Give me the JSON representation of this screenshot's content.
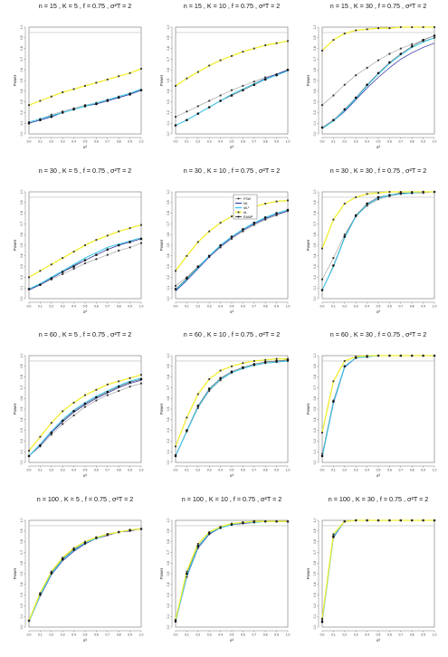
{
  "chart_data": {
    "type": "line",
    "x": [
      0,
      0.1,
      0.2,
      0.3,
      0.4,
      0.5,
      0.6,
      0.7,
      0.8,
      0.9,
      1.0
    ],
    "xticks": [
      "0.0",
      "0.1",
      "0.2",
      "0.3",
      "0.4",
      "0.5",
      "0.6",
      "0.7",
      "0.8",
      "0.9",
      "1.0"
    ],
    "yticks": [
      "0.0",
      "0.1",
      "0.2",
      "0.3",
      "0.4",
      "0.5",
      "0.6",
      "0.7",
      "0.8",
      "0.9",
      "1.0"
    ],
    "xlabel": "σ²",
    "ylabel": "Power",
    "xlim": [
      0,
      1
    ],
    "ylim": [
      0,
      1
    ],
    "reference_line": 0.95,
    "legend": {
      "panel": 4,
      "placement": "top-left",
      "entries": [
        {
          "key": "fsw",
          "label": "FSW"
        },
        {
          "key": "ml",
          "label": "ML"
        },
        {
          "key": "ml2",
          "label": "ML²"
        },
        {
          "key": "al",
          "label": "AL"
        },
        {
          "key": "ramp",
          "label": "RAMP"
        }
      ]
    },
    "colors": {
      "fsw": "#999999",
      "ml": "#2a2aa0",
      "ml2": "#40c8e8",
      "al": "#f0ee30",
      "ramp": "#222222",
      "ref": "#bbbbbb",
      "axis": "#555555"
    },
    "panels": [
      {
        "title": "n = 15 , K = 5 , f = 0.75 , σ²T = 2",
        "series": {
          "fsw": [
            0.11,
            0.14,
            0.18,
            0.21,
            0.24,
            0.27,
            0.29,
            0.32,
            0.35,
            0.38,
            0.41
          ],
          "ml": [
            0.1,
            0.13,
            0.16,
            0.2,
            0.23,
            0.26,
            0.28,
            0.31,
            0.34,
            0.37,
            0.41
          ],
          "ml2": [
            0.11,
            0.14,
            0.17,
            0.2,
            0.23,
            0.26,
            0.29,
            0.32,
            0.35,
            0.38,
            0.42
          ],
          "al": [
            0.27,
            0.31,
            0.35,
            0.39,
            0.42,
            0.45,
            0.48,
            0.51,
            0.54,
            0.57,
            0.61
          ],
          "ramp": [
            0.1,
            0.13,
            0.16,
            0.2,
            0.23,
            0.26,
            0.28,
            0.31,
            0.34,
            0.37,
            0.41
          ]
        }
      },
      {
        "title": "n = 15 , K = 10 , f = 0.75 , σ²T = 2",
        "series": {
          "fsw": [
            0.16,
            0.21,
            0.26,
            0.31,
            0.36,
            0.41,
            0.45,
            0.49,
            0.53,
            0.56,
            0.6
          ],
          "ml": [
            0.08,
            0.13,
            0.19,
            0.25,
            0.31,
            0.37,
            0.42,
            0.47,
            0.52,
            0.56,
            0.6
          ],
          "ml2": [
            0.08,
            0.13,
            0.19,
            0.25,
            0.31,
            0.37,
            0.42,
            0.47,
            0.51,
            0.55,
            0.59
          ],
          "al": [
            0.45,
            0.52,
            0.58,
            0.64,
            0.69,
            0.73,
            0.77,
            0.8,
            0.83,
            0.85,
            0.87
          ],
          "ramp": [
            0.08,
            0.13,
            0.19,
            0.25,
            0.31,
            0.36,
            0.41,
            0.46,
            0.51,
            0.55,
            0.6
          ]
        }
      },
      {
        "title": "n = 15 , K = 30 , f = 0.75 , σ²T = 2",
        "series": {
          "fsw": [
            0.27,
            0.36,
            0.46,
            0.55,
            0.62,
            0.69,
            0.75,
            0.8,
            0.84,
            0.87,
            0.9
          ],
          "ml": [
            0.05,
            0.12,
            0.21,
            0.32,
            0.43,
            0.53,
            0.62,
            0.7,
            0.76,
            0.81,
            0.85
          ],
          "ml2": [
            0.05,
            0.12,
            0.22,
            0.33,
            0.45,
            0.56,
            0.66,
            0.74,
            0.81,
            0.86,
            0.9
          ],
          "al": [
            0.78,
            0.88,
            0.94,
            0.97,
            0.98,
            0.99,
            0.99,
            1.0,
            1.0,
            1.0,
            1.0
          ],
          "ramp": [
            0.06,
            0.13,
            0.23,
            0.34,
            0.46,
            0.57,
            0.67,
            0.75,
            0.82,
            0.88,
            0.92
          ]
        }
      },
      {
        "title": "n = 30 , K = 5 , f = 0.75 , σ²T = 2",
        "series": {
          "fsw": [
            0.09,
            0.13,
            0.18,
            0.23,
            0.28,
            0.33,
            0.37,
            0.41,
            0.45,
            0.48,
            0.52
          ],
          "ml": [
            0.08,
            0.13,
            0.19,
            0.25,
            0.31,
            0.36,
            0.41,
            0.46,
            0.5,
            0.53,
            0.56
          ],
          "ml2": [
            0.09,
            0.14,
            0.2,
            0.26,
            0.32,
            0.38,
            0.43,
            0.48,
            0.51,
            0.54,
            0.57
          ],
          "al": [
            0.2,
            0.26,
            0.32,
            0.38,
            0.44,
            0.5,
            0.55,
            0.59,
            0.63,
            0.66,
            0.69
          ],
          "ramp": [
            0.09,
            0.13,
            0.19,
            0.25,
            0.3,
            0.36,
            0.41,
            0.46,
            0.5,
            0.53,
            0.56
          ]
        }
      },
      {
        "title": "n = 30 , K = 10 , f = 0.75 , σ²T = 2",
        "series": {
          "fsw": [
            0.12,
            0.2,
            0.3,
            0.39,
            0.48,
            0.56,
            0.63,
            0.69,
            0.74,
            0.78,
            0.82
          ],
          "ml": [
            0.07,
            0.17,
            0.28,
            0.39,
            0.49,
            0.57,
            0.64,
            0.7,
            0.75,
            0.79,
            0.82
          ],
          "ml2": [
            0.08,
            0.18,
            0.29,
            0.4,
            0.5,
            0.58,
            0.65,
            0.71,
            0.76,
            0.8,
            0.83
          ],
          "al": [
            0.26,
            0.4,
            0.53,
            0.63,
            0.71,
            0.77,
            0.82,
            0.86,
            0.89,
            0.91,
            0.92
          ],
          "ramp": [
            0.09,
            0.19,
            0.3,
            0.4,
            0.5,
            0.58,
            0.65,
            0.71,
            0.76,
            0.8,
            0.83
          ]
        }
      },
      {
        "title": "n = 30 , K = 30 , f = 0.75 , σ²T = 2",
        "series": {
          "fsw": [
            0.18,
            0.38,
            0.6,
            0.77,
            0.87,
            0.93,
            0.96,
            0.98,
            0.99,
            0.99,
            1.0
          ],
          "ml": [
            0.08,
            0.3,
            0.57,
            0.77,
            0.88,
            0.94,
            0.97,
            0.98,
            0.99,
            1.0,
            1.0
          ],
          "ml2": [
            0.08,
            0.3,
            0.57,
            0.77,
            0.88,
            0.94,
            0.97,
            0.98,
            0.99,
            1.0,
            1.0
          ],
          "al": [
            0.47,
            0.74,
            0.89,
            0.95,
            0.98,
            0.99,
            1.0,
            1.0,
            1.0,
            1.0,
            1.0
          ],
          "ramp": [
            0.08,
            0.31,
            0.58,
            0.78,
            0.89,
            0.95,
            0.97,
            0.99,
            0.99,
            1.0,
            1.0
          ]
        }
      },
      {
        "title": "n = 60 , K = 5 , f = 0.75 , σ²T = 2",
        "series": {
          "fsw": [
            0.06,
            0.15,
            0.26,
            0.36,
            0.44,
            0.52,
            0.58,
            0.63,
            0.67,
            0.71,
            0.74
          ],
          "ml": [
            0.06,
            0.16,
            0.28,
            0.38,
            0.47,
            0.54,
            0.6,
            0.65,
            0.7,
            0.74,
            0.77
          ],
          "ml2": [
            0.06,
            0.17,
            0.29,
            0.4,
            0.49,
            0.56,
            0.62,
            0.67,
            0.72,
            0.76,
            0.79
          ],
          "al": [
            0.11,
            0.24,
            0.37,
            0.48,
            0.56,
            0.63,
            0.68,
            0.73,
            0.76,
            0.79,
            0.82
          ],
          "ramp": [
            0.06,
            0.16,
            0.28,
            0.39,
            0.48,
            0.55,
            0.61,
            0.66,
            0.71,
            0.75,
            0.78
          ]
        }
      },
      {
        "title": "n = 60 , K = 10 , f = 0.75 , σ²T = 2",
        "series": {
          "fsw": [
            0.07,
            0.29,
            0.51,
            0.67,
            0.77,
            0.84,
            0.88,
            0.91,
            0.93,
            0.94,
            0.95
          ],
          "ml": [
            0.06,
            0.29,
            0.52,
            0.68,
            0.78,
            0.84,
            0.88,
            0.91,
            0.93,
            0.94,
            0.95
          ],
          "ml2": [
            0.06,
            0.29,
            0.52,
            0.68,
            0.78,
            0.84,
            0.88,
            0.91,
            0.93,
            0.94,
            0.95
          ],
          "al": [
            0.15,
            0.42,
            0.64,
            0.78,
            0.86,
            0.9,
            0.93,
            0.95,
            0.96,
            0.97,
            0.97
          ],
          "ramp": [
            0.06,
            0.3,
            0.53,
            0.69,
            0.79,
            0.85,
            0.89,
            0.92,
            0.94,
            0.95,
            0.96
          ]
        }
      },
      {
        "title": "n = 60 , K = 30 , f = 0.75 , σ²T = 2",
        "series": {
          "fsw": [
            0.08,
            0.58,
            0.9,
            0.98,
            0.99,
            1.0,
            1.0,
            1.0,
            1.0,
            1.0,
            1.0
          ],
          "ml": [
            0.05,
            0.55,
            0.89,
            0.98,
            0.99,
            1.0,
            1.0,
            1.0,
            1.0,
            1.0,
            1.0
          ],
          "ml2": [
            0.05,
            0.56,
            0.9,
            0.98,
            0.99,
            1.0,
            1.0,
            1.0,
            1.0,
            1.0,
            1.0
          ],
          "al": [
            0.28,
            0.76,
            0.95,
            0.99,
            1.0,
            1.0,
            1.0,
            1.0,
            1.0,
            1.0,
            1.0
          ],
          "ramp": [
            0.06,
            0.57,
            0.9,
            0.98,
            0.99,
            1.0,
            1.0,
            1.0,
            1.0,
            1.0,
            1.0
          ]
        }
      },
      {
        "title": "n = 100 , K = 5 , f = 0.75 , σ²T = 2",
        "series": {
          "fsw": [
            0.06,
            0.3,
            0.5,
            0.63,
            0.72,
            0.78,
            0.83,
            0.86,
            0.89,
            0.9,
            0.92
          ],
          "ml": [
            0.05,
            0.29,
            0.49,
            0.62,
            0.71,
            0.78,
            0.83,
            0.86,
            0.89,
            0.9,
            0.92
          ],
          "ml2": [
            0.05,
            0.3,
            0.5,
            0.63,
            0.72,
            0.79,
            0.83,
            0.87,
            0.89,
            0.91,
            0.92
          ],
          "al": [
            0.06,
            0.32,
            0.52,
            0.65,
            0.74,
            0.8,
            0.84,
            0.87,
            0.89,
            0.91,
            0.92
          ],
          "ramp": [
            0.06,
            0.31,
            0.51,
            0.64,
            0.73,
            0.79,
            0.84,
            0.87,
            0.89,
            0.91,
            0.92
          ]
        }
      },
      {
        "title": "n = 100 , K = 10 , f = 0.75 , σ²T = 2",
        "series": {
          "fsw": [
            0.05,
            0.47,
            0.74,
            0.87,
            0.93,
            0.96,
            0.97,
            0.98,
            0.99,
            0.99,
            0.99
          ],
          "ml": [
            0.05,
            0.47,
            0.74,
            0.87,
            0.93,
            0.96,
            0.97,
            0.98,
            0.99,
            0.99,
            0.99
          ],
          "ml2": [
            0.05,
            0.48,
            0.75,
            0.88,
            0.93,
            0.96,
            0.98,
            0.98,
            0.99,
            0.99,
            0.99
          ],
          "al": [
            0.07,
            0.52,
            0.78,
            0.89,
            0.94,
            0.97,
            0.98,
            0.99,
            0.99,
            0.99,
            0.99
          ],
          "ramp": [
            0.06,
            0.5,
            0.76,
            0.88,
            0.93,
            0.96,
            0.98,
            0.99,
            0.99,
            0.99,
            0.99
          ]
        }
      },
      {
        "title": "n = 100 , K = 30 , f = 0.75 , σ²T = 2",
        "series": {
          "fsw": [
            0.07,
            0.84,
            0.99,
            1.0,
            1.0,
            1.0,
            1.0,
            1.0,
            1.0,
            1.0,
            1.0
          ],
          "ml": [
            0.05,
            0.84,
            0.99,
            1.0,
            1.0,
            1.0,
            1.0,
            1.0,
            1.0,
            1.0,
            1.0
          ],
          "ml2": [
            0.05,
            0.85,
            0.99,
            1.0,
            1.0,
            1.0,
            1.0,
            1.0,
            1.0,
            1.0,
            1.0
          ],
          "al": [
            0.08,
            0.87,
            0.99,
            1.0,
            1.0,
            1.0,
            1.0,
            1.0,
            1.0,
            1.0,
            1.0
          ],
          "ramp": [
            0.05,
            0.85,
            0.99,
            1.0,
            1.0,
            1.0,
            1.0,
            1.0,
            1.0,
            1.0,
            1.0
          ]
        }
      }
    ]
  }
}
